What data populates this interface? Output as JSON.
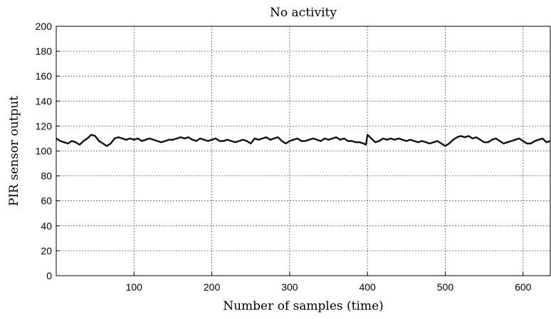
{
  "chart_data": {
    "type": "line",
    "title": "No activity",
    "xlabel": "Number of samples (time)",
    "ylabel": "PIR sensor output",
    "xlim": [
      0,
      635
    ],
    "ylim": [
      0,
      200
    ],
    "xticks": [
      100,
      200,
      300,
      400,
      500,
      600
    ],
    "yticks": [
      0,
      20,
      40,
      60,
      80,
      100,
      120,
      140,
      160,
      180,
      200
    ],
    "grid": true,
    "series": [
      {
        "x": [
          0,
          5,
          10,
          15,
          20,
          25,
          30,
          35,
          40,
          45,
          50,
          55,
          60,
          65,
          70,
          75,
          80,
          85,
          90,
          95,
          100,
          105,
          110,
          115,
          120,
          125,
          130,
          135,
          140,
          145,
          150,
          155,
          160,
          165,
          170,
          175,
          180,
          185,
          190,
          195,
          200,
          205,
          210,
          215,
          220,
          225,
          230,
          235,
          240,
          245,
          250,
          255,
          260,
          265,
          270,
          275,
          280,
          285,
          290,
          295,
          300,
          305,
          310,
          315,
          320,
          325,
          330,
          335,
          340,
          345,
          350,
          355,
          360,
          365,
          370,
          375,
          380,
          385,
          390,
          395,
          398,
          400,
          405,
          410,
          415,
          420,
          425,
          430,
          435,
          440,
          445,
          450,
          455,
          460,
          465,
          470,
          475,
          480,
          485,
          490,
          495,
          500,
          505,
          510,
          515,
          520,
          525,
          530,
          535,
          540,
          545,
          550,
          555,
          560,
          565,
          570,
          575,
          580,
          585,
          590,
          595,
          600,
          605,
          610,
          615,
          620,
          625,
          630,
          635
        ],
        "values": [
          110,
          108,
          107,
          106,
          108,
          107,
          105,
          108,
          110,
          113,
          112,
          108,
          106,
          104,
          106,
          110,
          111,
          110,
          109,
          110,
          109,
          110,
          108,
          109,
          110,
          109,
          108,
          107,
          108,
          109,
          109,
          110,
          111,
          110,
          111,
          109,
          108,
          110,
          109,
          108,
          109,
          110,
          108,
          108,
          109,
          108,
          107,
          108,
          109,
          108,
          106,
          110,
          109,
          110,
          111,
          109,
          110,
          111,
          108,
          106,
          108,
          109,
          110,
          108,
          108,
          109,
          110,
          109,
          108,
          110,
          109,
          110,
          111,
          109,
          110,
          108,
          108,
          107,
          107,
          106,
          105,
          113,
          110,
          107,
          108,
          110,
          109,
          110,
          109,
          110,
          109,
          108,
          109,
          108,
          107,
          108,
          107,
          106,
          107,
          108,
          106,
          104,
          106,
          109,
          111,
          112,
          111,
          112,
          110,
          111,
          109,
          107,
          107,
          109,
          110,
          108,
          106,
          107,
          108,
          109,
          110,
          108,
          106,
          106,
          108,
          109,
          110,
          107,
          108
        ]
      }
    ]
  }
}
